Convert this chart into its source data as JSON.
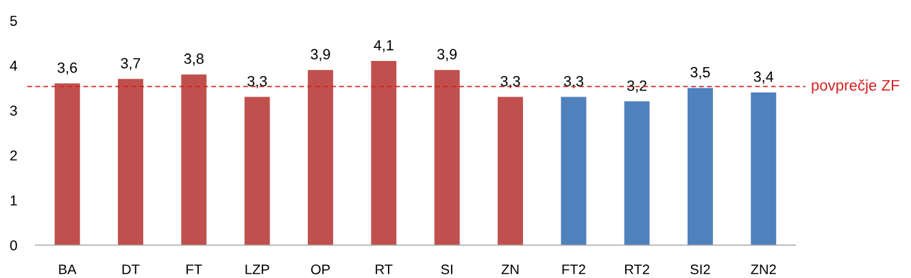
{
  "chart_data": {
    "type": "bar",
    "categories": [
      "BA",
      "DT",
      "FT",
      "LZP",
      "OP",
      "RT",
      "SI",
      "ZN",
      "FT2",
      "RT2",
      "SI2",
      "ZN2"
    ],
    "values": [
      3.6,
      3.7,
      3.8,
      3.3,
      3.9,
      4.1,
      3.9,
      3.3,
      3.3,
      3.2,
      3.5,
      3.4
    ],
    "colors": [
      "#c0504d",
      "#c0504d",
      "#c0504d",
      "#c0504d",
      "#c0504d",
      "#c0504d",
      "#c0504d",
      "#c0504d",
      "#4f81bd",
      "#4f81bd",
      "#4f81bd",
      "#4f81bd"
    ],
    "value_labels": [
      "3,6",
      "3,7",
      "3,8",
      "3,3",
      "3,9",
      "4,1",
      "3,9",
      "3,3",
      "3,3",
      "3,2",
      "3,5",
      "3,4"
    ],
    "ylim": [
      0,
      5
    ],
    "yticks": [
      0,
      1,
      2,
      3,
      4,
      5
    ],
    "ref_lines": [
      {
        "axis": "y",
        "value": 3.53,
        "label": "povprečje ZF",
        "color": "#d42020",
        "line_style": "dashed"
      }
    ]
  }
}
